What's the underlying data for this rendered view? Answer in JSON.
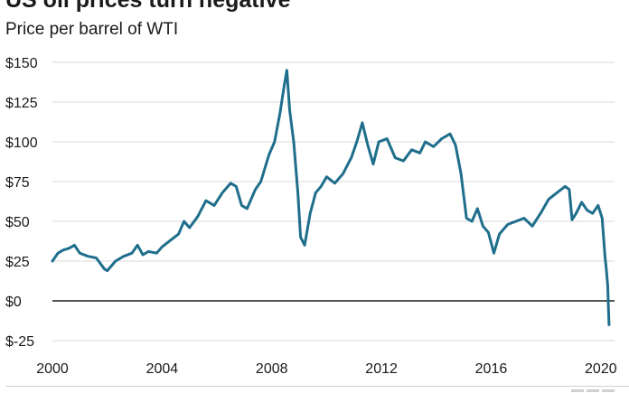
{
  "chart_data": {
    "type": "line",
    "title": "US oil prices turn negative",
    "subtitle": "Price per barrel of WTI",
    "xlabel": "",
    "ylabel": "",
    "xlim": [
      2000,
      2020.5
    ],
    "ylim": [
      -25,
      150
    ],
    "x_ticks": [
      2000,
      2004,
      2008,
      2012,
      2016,
      2020
    ],
    "x_tick_labels": [
      "2000",
      "2004",
      "2008",
      "2012",
      "2016",
      "2020"
    ],
    "y_ticks": [
      150,
      125,
      100,
      75,
      50,
      25,
      0,
      -25
    ],
    "y_tick_labels": [
      "$150",
      "$125",
      "$100",
      "$75",
      "$50",
      "$25",
      "$0",
      "$-25"
    ],
    "grid": true,
    "zero_line": true,
    "series": [
      {
        "color": "#1f6e8c",
        "x": [
          2000.0,
          2000.2,
          2000.4,
          2000.6,
          2000.8,
          2001.0,
          2001.3,
          2001.6,
          2001.9,
          2002.0,
          2002.3,
          2002.6,
          2002.9,
          2003.1,
          2003.3,
          2003.5,
          2003.8,
          2004.0,
          2004.3,
          2004.6,
          2004.8,
          2005.0,
          2005.3,
          2005.6,
          2005.9,
          2006.2,
          2006.5,
          2006.7,
          2006.9,
          2007.1,
          2007.4,
          2007.6,
          2007.9,
          2008.1,
          2008.3,
          2008.45,
          2008.55,
          2008.65,
          2008.8,
          2008.95,
          2009.05,
          2009.2,
          2009.4,
          2009.6,
          2009.8,
          2010.0,
          2010.3,
          2010.6,
          2010.9,
          2011.1,
          2011.3,
          2011.5,
          2011.7,
          2011.9,
          2012.2,
          2012.5,
          2012.8,
          2013.1,
          2013.4,
          2013.6,
          2013.9,
          2014.2,
          2014.5,
          2014.7,
          2014.9,
          2015.1,
          2015.3,
          2015.5,
          2015.7,
          2015.9,
          2016.1,
          2016.3,
          2016.6,
          2016.9,
          2017.2,
          2017.5,
          2017.8,
          2018.1,
          2018.4,
          2018.7,
          2018.85,
          2018.95,
          2019.1,
          2019.3,
          2019.5,
          2019.7,
          2019.9,
          2020.05,
          2020.15,
          2020.2,
          2020.25,
          2020.3
        ],
        "y": [
          25,
          30,
          32,
          33,
          35,
          30,
          28,
          27,
          20,
          19,
          25,
          28,
          30,
          35,
          29,
          31,
          30,
          34,
          38,
          42,
          50,
          46,
          53,
          63,
          60,
          68,
          74,
          72,
          60,
          58,
          70,
          75,
          92,
          100,
          118,
          135,
          145,
          120,
          100,
          68,
          40,
          35,
          55,
          68,
          72,
          78,
          74,
          80,
          90,
          100,
          112,
          98,
          86,
          100,
          102,
          90,
          88,
          95,
          93,
          100,
          97,
          102,
          105,
          98,
          80,
          52,
          50,
          58,
          47,
          43,
          30,
          42,
          48,
          50,
          52,
          47,
          55,
          64,
          68,
          72,
          70,
          51,
          55,
          62,
          57,
          55,
          60,
          52,
          28,
          20,
          10,
          -15
        ]
      }
    ]
  }
}
